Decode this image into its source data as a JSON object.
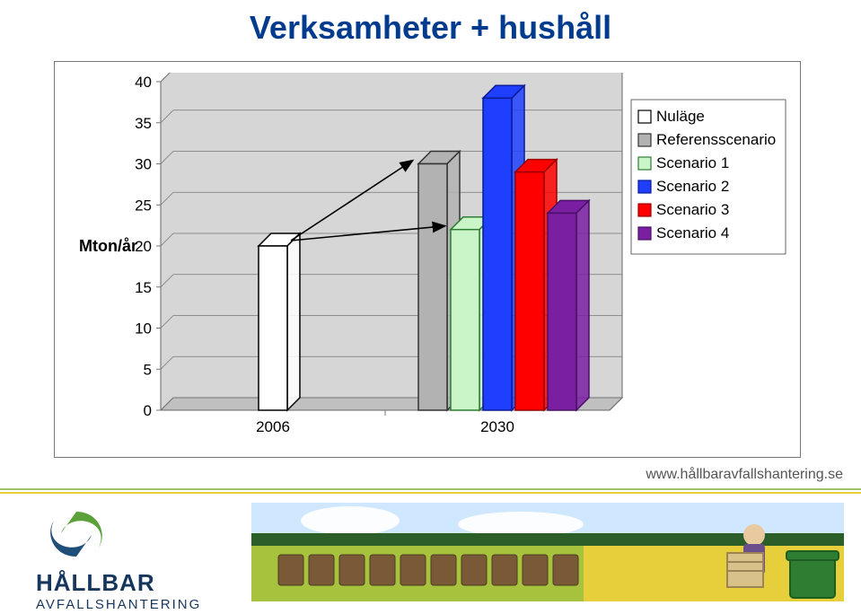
{
  "title": "Verksamheter + hushåll",
  "footer_url": "www.hållbaravfallshantering.se",
  "logo": {
    "main": "HÅLLBAR",
    "sub": "AVFALLSHANTERING",
    "swirl_green": "#5aa13a",
    "swirl_blue": "#1f4e79"
  },
  "stripe": {
    "color1": "#9cc26a",
    "color2": "#e6cf3a"
  },
  "chart": {
    "type": "bar",
    "y_label": "Mton/år",
    "y_label_bold": true,
    "y_ticks": [
      0,
      5,
      10,
      15,
      20,
      25,
      30,
      35,
      40
    ],
    "background_color": "#ffffff",
    "plot_bg": "#d6d6d6",
    "plot_border": "#666666",
    "floor_color": "#c0c0c0",
    "grid_color": "#777777",
    "text_color": "#000000",
    "tick_fontsize": 17,
    "category_fontsize": 17,
    "categories": [
      "2006",
      "2030"
    ],
    "legend": {
      "border_color": "#666666",
      "bg": "#ffffff",
      "entries": [
        {
          "label": "Nuläge",
          "fill": "#ffffff",
          "stroke": "#000000"
        },
        {
          "label": "Referensscenario",
          "fill": "#b2b2b2",
          "stroke": "#333333"
        },
        {
          "label": "Scenario 1",
          "fill": "#c9f5c9",
          "stroke": "#2e7d32"
        },
        {
          "label": "Scenario 2",
          "fill": "#1f3fff",
          "stroke": "#0a1a99"
        },
        {
          "label": "Scenario 3",
          "fill": "#ff0000",
          "stroke": "#990000"
        },
        {
          "label": "Scenario 4",
          "fill": "#7a1fa2",
          "stroke": "#4a1065"
        }
      ],
      "fontsize": 17
    },
    "groups": [
      {
        "category": "2006",
        "bars": [
          {
            "series": "Nuläge",
            "value": 20,
            "fill": "#ffffff",
            "stroke": "#000000"
          }
        ]
      },
      {
        "category": "2030",
        "bars": [
          {
            "series": "Referensscenario",
            "value": 30,
            "fill": "#b2b2b2",
            "stroke": "#333333"
          },
          {
            "series": "Scenario 1",
            "value": 22,
            "fill": "#c9f5c9",
            "stroke": "#2e7d32"
          },
          {
            "series": "Scenario 2",
            "value": 38,
            "fill": "#1f3fff",
            "stroke": "#0a1a99"
          },
          {
            "series": "Scenario 3",
            "value": 29,
            "fill": "#ff0000",
            "stroke": "#990000"
          },
          {
            "series": "Scenario 4",
            "value": 24,
            "fill": "#7a1fa2",
            "stroke": "#4a1065"
          }
        ]
      }
    ],
    "arrows": [
      {
        "from_group": 0,
        "from_bar": 0,
        "to_group": 1,
        "to_bar": 0
      },
      {
        "from_group": 0,
        "from_bar": 0,
        "to_group": 1,
        "to_bar": 1
      }
    ],
    "bar": {
      "width": 32,
      "gap": 4,
      "depth": 14,
      "stroke_width": 1.5
    },
    "ylim": [
      0,
      40
    ]
  }
}
